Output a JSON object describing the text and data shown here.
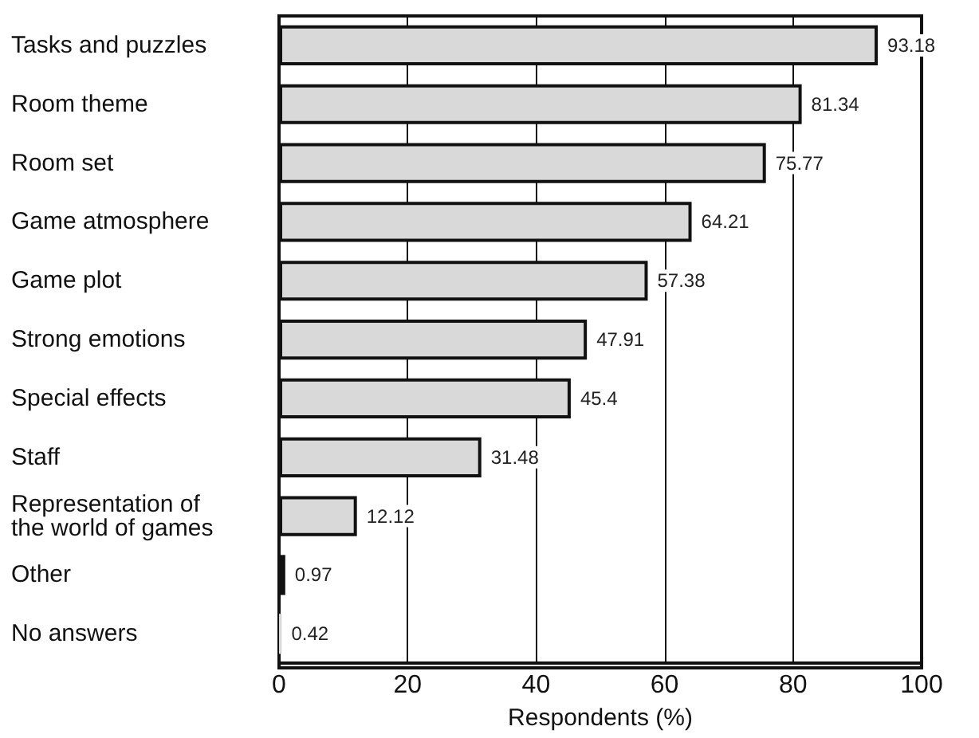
{
  "chart_data": {
    "type": "bar",
    "orientation": "horizontal",
    "xlabel": "Respondents (%)",
    "categories": [
      "Tasks and puzzles",
      "Room theme",
      "Room set",
      "Game atmosphere",
      "Game plot",
      "Strong emotions",
      "Special effects",
      "Staff",
      "Representation of\nthe world of games",
      "Other",
      "No answers"
    ],
    "values": [
      93.18,
      81.34,
      75.77,
      64.21,
      57.38,
      47.91,
      45.4,
      31.48,
      12.12,
      0.97,
      0.42
    ],
    "color": "#d9d9d9",
    "data_labels": true,
    "xlim": [
      0,
      100
    ],
    "xticks": [
      0,
      20,
      40,
      60,
      80,
      100
    ],
    "grid": "x"
  }
}
